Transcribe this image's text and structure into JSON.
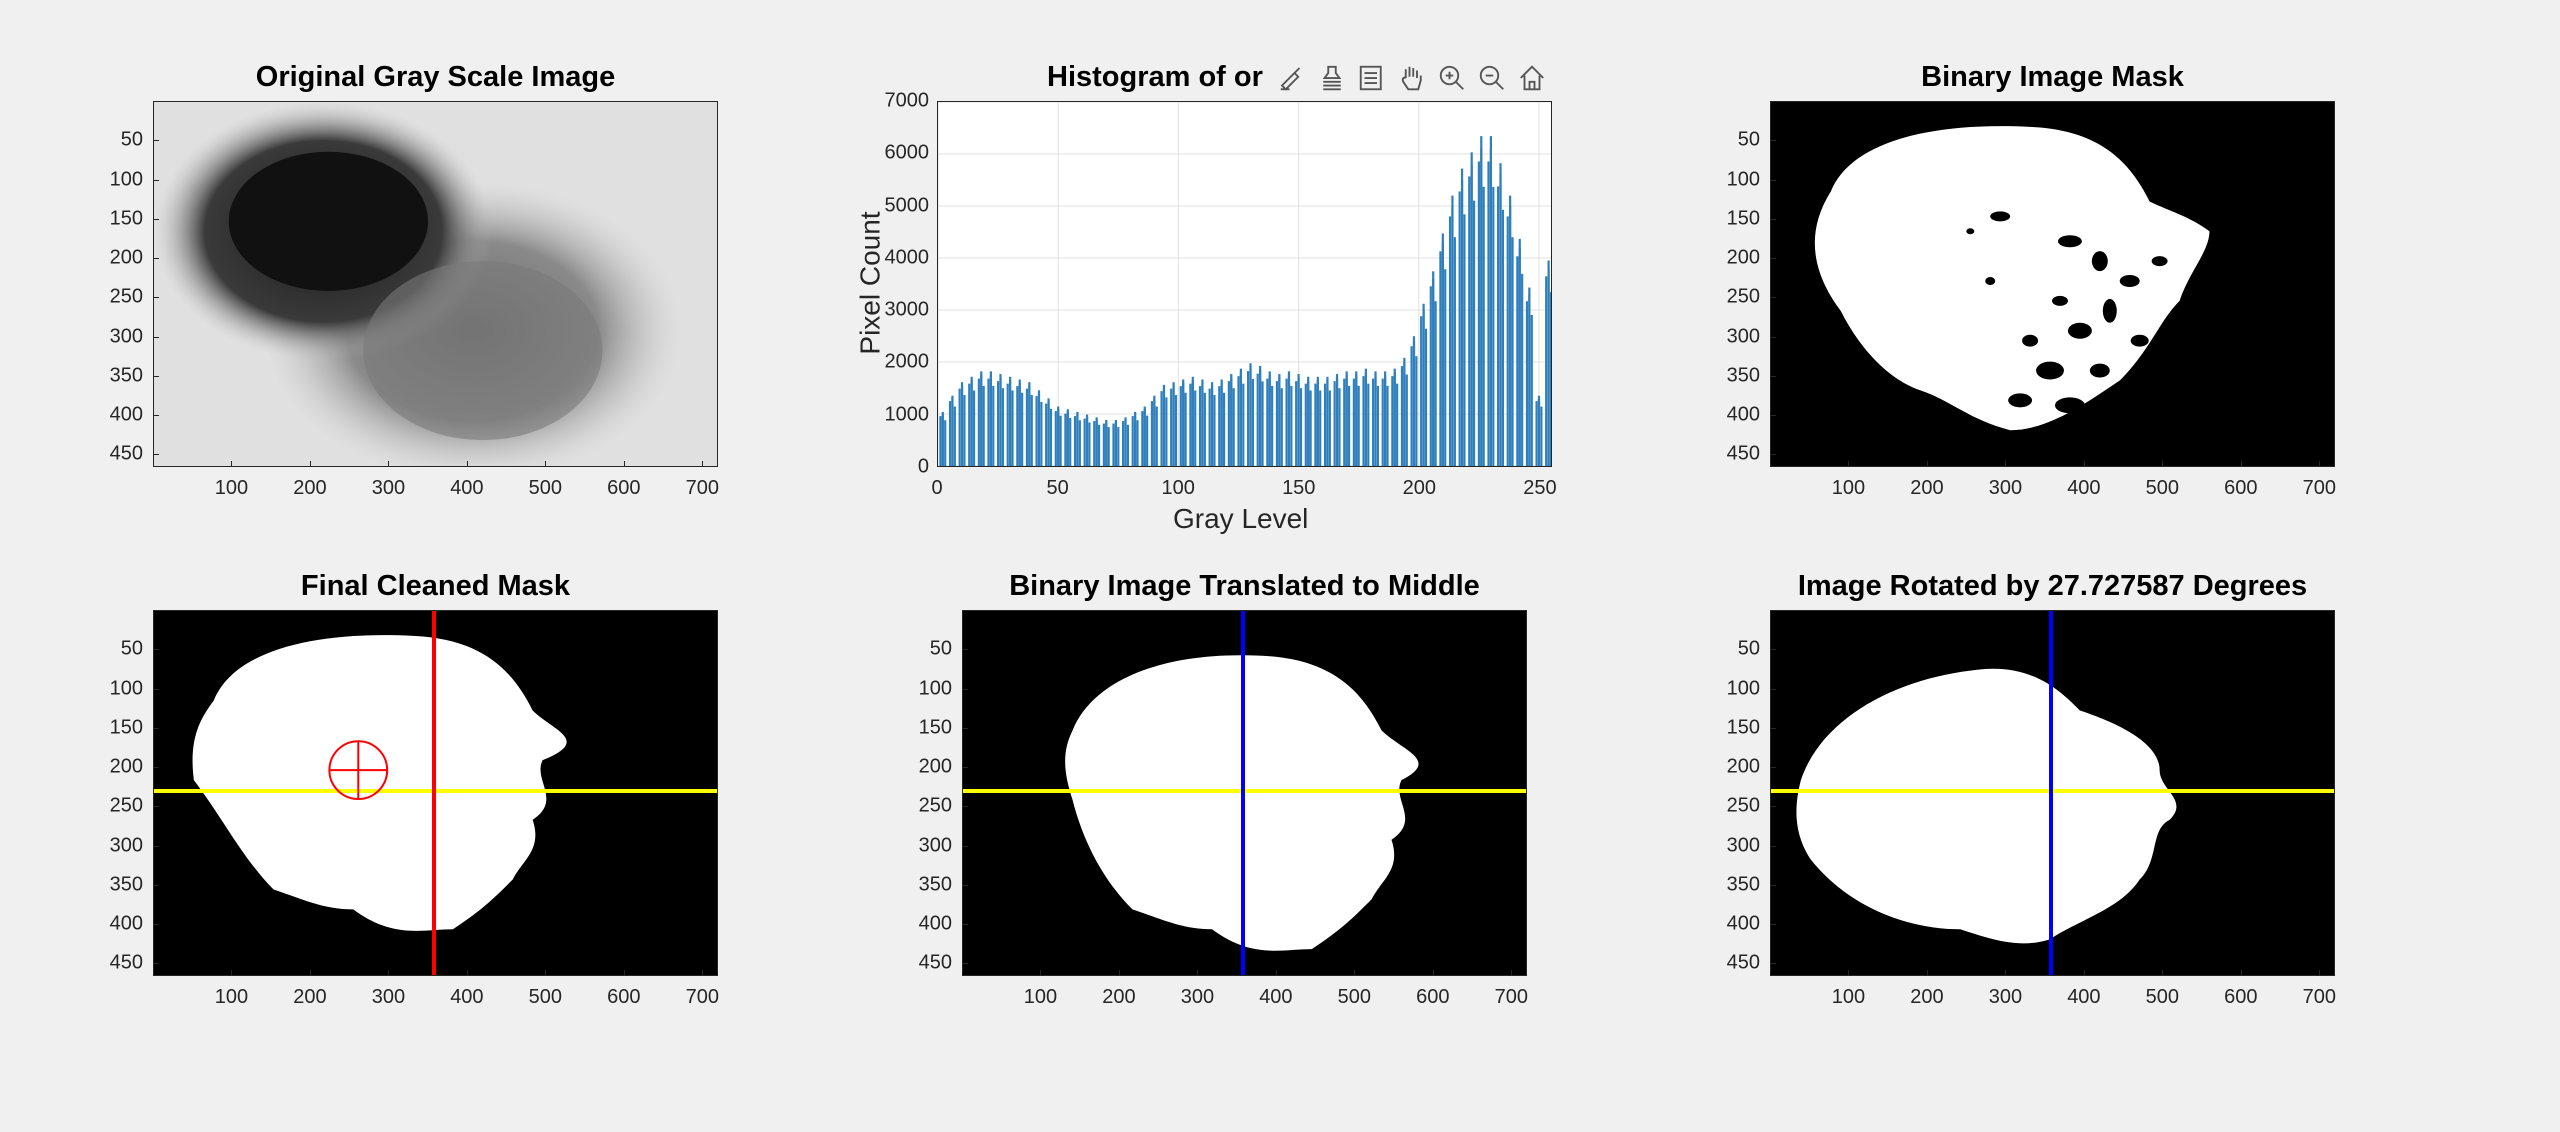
{
  "panels": {
    "p1": {
      "title": "Original Gray Scale Image"
    },
    "p2": {
      "title": "Histogram of or"
    },
    "p3": {
      "title": "Binary Image Mask"
    },
    "p4": {
      "title": "Final Cleaned Mask"
    },
    "p5": {
      "title": "Binary Image Translated to Middle"
    },
    "p6": {
      "title": "Image Rotated by 27.727587 Degrees"
    }
  },
  "image_axes": {
    "x_ticks": [
      "100",
      "200",
      "300",
      "400",
      "500",
      "600",
      "700"
    ],
    "y_ticks": [
      "50",
      "100",
      "150",
      "200",
      "250",
      "300",
      "350",
      "400",
      "450"
    ]
  },
  "histogram": {
    "x_ticks": [
      "0",
      "50",
      "100",
      "150",
      "200",
      "250"
    ],
    "y_ticks": [
      "0",
      "1000",
      "2000",
      "3000",
      "4000",
      "5000",
      "6000",
      "7000"
    ],
    "xlabel": "Gray Level",
    "ylabel": "Pixel Count"
  },
  "toolbar": {
    "icons": [
      "brush-icon",
      "datatip-icon",
      "legend-icon",
      "pan-hand-icon",
      "zoom-in-icon",
      "zoom-out-icon",
      "home-icon"
    ]
  },
  "colors": {
    "bar": "#2f7fbd",
    "yellow_line": "#ffff00",
    "red_line": "#ff0000",
    "blue_line": "#0000ff"
  },
  "chart_data": {
    "type": "bar",
    "xlabel": "Gray Level",
    "ylabel": "Pixel Count",
    "xlim": [
      0,
      255
    ],
    "ylim": [
      0,
      7000
    ],
    "x": [
      2,
      6,
      10,
      14,
      18,
      22,
      26,
      30,
      34,
      38,
      42,
      46,
      50,
      54,
      58,
      62,
      66,
      70,
      74,
      78,
      82,
      86,
      90,
      94,
      98,
      102,
      106,
      110,
      114,
      118,
      122,
      126,
      130,
      134,
      138,
      142,
      146,
      150,
      154,
      158,
      162,
      166,
      170,
      174,
      178,
      182,
      186,
      190,
      194,
      198,
      202,
      206,
      210,
      214,
      218,
      222,
      226,
      230,
      234,
      238,
      242,
      246,
      250,
      254
    ],
    "values": [
      1000,
      1300,
      1550,
      1650,
      1750,
      1750,
      1700,
      1650,
      1600,
      1550,
      1400,
      1250,
      1100,
      1050,
      1000,
      950,
      900,
      850,
      850,
      900,
      1000,
      1100,
      1300,
      1500,
      1550,
      1600,
      1650,
      1600,
      1550,
      1600,
      1700,
      1800,
      1900,
      1850,
      1750,
      1700,
      1750,
      1700,
      1650,
      1650,
      1650,
      1700,
      1750,
      1750,
      1800,
      1750,
      1750,
      1800,
      2000,
      2400,
      3000,
      3600,
      4300,
      5000,
      5500,
      5800,
      6100,
      6100,
      5600,
      5000,
      4200,
      3300,
      1300,
      3800
    ]
  }
}
